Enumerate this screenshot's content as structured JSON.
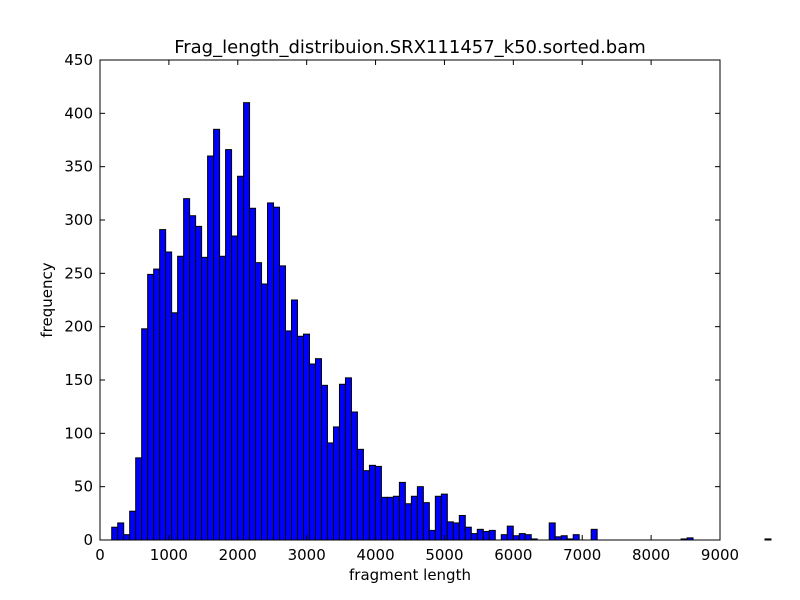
{
  "chart_data": {
    "type": "bar",
    "title": "Frag_length_distribuion.SRX111457_k50.sorted.bam",
    "xlabel": "fragment length",
    "ylabel": "frequency",
    "xlim": [
      0,
      9000
    ],
    "ylim": [
      0,
      450
    ],
    "xticks": [
      0,
      1000,
      2000,
      3000,
      4000,
      5000,
      6000,
      7000,
      8000,
      9000
    ],
    "yticks": [
      0,
      50,
      100,
      150,
      200,
      250,
      300,
      350,
      400,
      450
    ],
    "xtick_labels": [
      "0",
      "1000",
      "2000",
      "3000",
      "4000",
      "5000",
      "6000",
      "7000",
      "8000",
      "9000"
    ],
    "ytick_labels": [
      "0",
      "50",
      "100",
      "150",
      "200",
      "250",
      "300",
      "350",
      "400",
      "450"
    ],
    "bin_start": 170,
    "bin_width": 87,
    "values": [
      12,
      16,
      5,
      27,
      77,
      198,
      249,
      254,
      291,
      270,
      213,
      266,
      320,
      304,
      294,
      265,
      360,
      385,
      266,
      366,
      285,
      341,
      410,
      311,
      260,
      240,
      316,
      312,
      257,
      196,
      225,
      191,
      193,
      165,
      170,
      145,
      91,
      106,
      146,
      152,
      120,
      85,
      65,
      70,
      69,
      40,
      40,
      41,
      54,
      34,
      41,
      50,
      35,
      9,
      41,
      43,
      17,
      16,
      23,
      12,
      6,
      10,
      8,
      9,
      0,
      5,
      13,
      4,
      6,
      5,
      1,
      0,
      0,
      16,
      3,
      4,
      1,
      5,
      0,
      0,
      10,
      0,
      0,
      0,
      0,
      0,
      0,
      0,
      0,
      0,
      0,
      0,
      0,
      0,
      0,
      1,
      2,
      0,
      0,
      0,
      0,
      0,
      0,
      0,
      0,
      0,
      0,
      0,
      0,
      1
    ],
    "bar_color": "#0000ff",
    "edge_color": "#000000",
    "grid": false,
    "legend": "none"
  }
}
